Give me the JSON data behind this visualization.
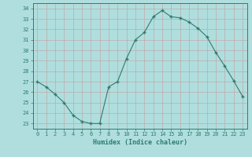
{
  "x": [
    0,
    1,
    2,
    3,
    4,
    5,
    6,
    7,
    8,
    9,
    10,
    11,
    12,
    13,
    14,
    15,
    16,
    17,
    18,
    19,
    20,
    21,
    22,
    23
  ],
  "y": [
    27.0,
    26.5,
    25.8,
    25.0,
    23.8,
    23.2,
    23.0,
    23.0,
    26.5,
    27.0,
    29.2,
    31.0,
    31.7,
    33.2,
    33.8,
    33.2,
    33.1,
    32.7,
    32.1,
    31.3,
    29.8,
    28.5,
    27.1,
    25.6
  ],
  "line_color": "#2d7d6f",
  "marker_color": "#2d7d6f",
  "bg_color": "#b0dede",
  "grid_color": "#c0aaaa",
  "xlabel": "Humidex (Indice chaleur)",
  "yticks": [
    23,
    24,
    25,
    26,
    27,
    28,
    29,
    30,
    31,
    32,
    33,
    34
  ],
  "xticks": [
    0,
    1,
    2,
    3,
    4,
    5,
    6,
    7,
    8,
    9,
    10,
    11,
    12,
    13,
    14,
    15,
    16,
    17,
    18,
    19,
    20,
    21,
    22,
    23
  ],
  "xlim": [
    -0.5,
    23.5
  ],
  "ylim": [
    22.5,
    34.5
  ]
}
